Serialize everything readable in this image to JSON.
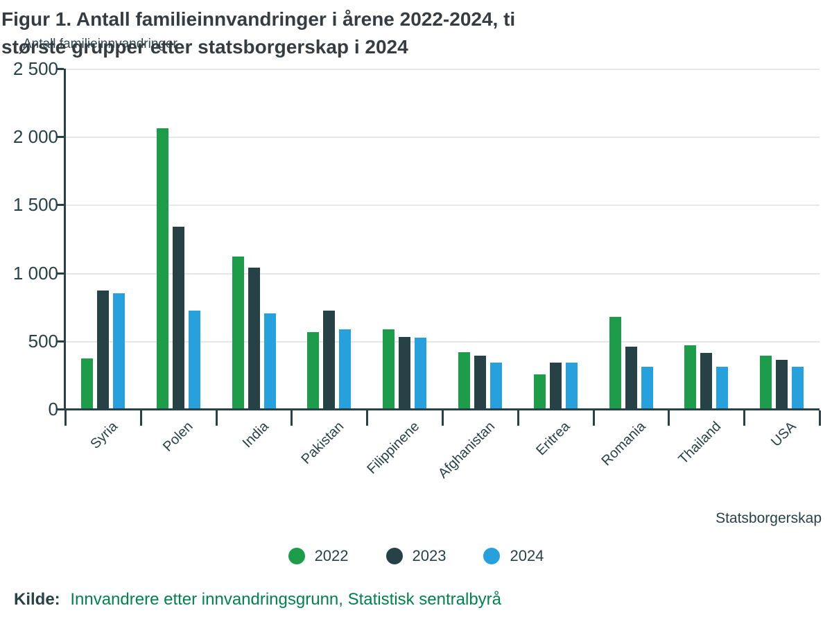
{
  "title": {
    "line1": "Figur 1. Antall familieinnvandringer i årene 2022-2024, ti",
    "line2": "største grupper etter statsborgerskap i 2024"
  },
  "source": {
    "prefix": "Kilde:",
    "link": "Innvandrere etter innvandringsgrunn, Statistisk sentralbyrå"
  },
  "colors": {
    "series_2022": "#1d9d49",
    "series_2023": "#274247",
    "series_2024": "#27a0de",
    "grid": "#e6e6e6",
    "axis": "#274247",
    "text": "#274247",
    "title_text": "#363d42",
    "link_green": "#00824d"
  },
  "chart_data": {
    "type": "bar",
    "title": "Figur 1. Antall familieinnvandringer i årene 2022-2024, ti største grupper etter statsborgerskap i 2024",
    "ylabel": "Antall familieinnvandringer",
    "xlabel": "Statsborgerskap",
    "categories": [
      "Syria",
      "Polen",
      "India",
      "Pakistan",
      "Filippinene",
      "Afghanistan",
      "Eritrea",
      "Romania",
      "Thailand",
      "USA"
    ],
    "series": [
      {
        "name": "2022",
        "color": "#1d9d49",
        "values": [
          370,
          2060,
          1120,
          565,
          585,
          420,
          255,
          675,
          470,
          390
        ]
      },
      {
        "name": "2023",
        "color": "#274247",
        "values": [
          870,
          1340,
          1040,
          725,
          530,
          390,
          340,
          460,
          410,
          360
        ]
      },
      {
        "name": "2024",
        "color": "#27a0de",
        "values": [
          850,
          725,
          705,
          585,
          525,
          340,
          340,
          310,
          310,
          310
        ]
      }
    ],
    "ylim": [
      0,
      2500
    ],
    "yticks": [
      {
        "value": 0,
        "label": "0"
      },
      {
        "value": 500,
        "label": "500"
      },
      {
        "value": 1000,
        "label": "1 000"
      },
      {
        "value": 1500,
        "label": "1 500"
      },
      {
        "value": 2000,
        "label": "2 000"
      },
      {
        "value": 2500,
        "label": "2 500"
      }
    ],
    "grid": true,
    "legend_position": "bottom-center"
  }
}
